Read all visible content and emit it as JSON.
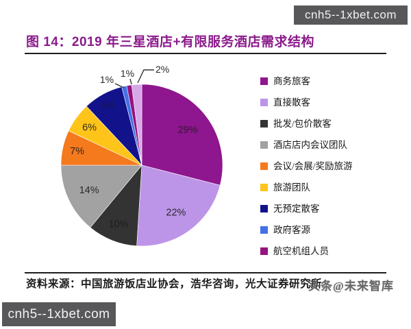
{
  "watermarks": {
    "top_right": "cnh5--1xbet.com",
    "bottom_left": "cnh5--1xbet.com",
    "overlay": "头条@未来智库"
  },
  "header": {
    "title": "图 14：2019 年三星酒店+有限服务酒店需求结构"
  },
  "footer": {
    "source": "资料来源：中国旅游饭店业协会，浩华咨询，光大证券研究所"
  },
  "chart_data": {
    "type": "pie",
    "title": "2019 年三星酒店+有限服务酒店需求结构",
    "legend_position": "right",
    "start_angle_deg": 0,
    "direction": "clockwise",
    "slices": [
      {
        "label": "商务旅客",
        "value": 29,
        "display": "29%",
        "color": "#8E168E",
        "legend": true
      },
      {
        "label": "直接散客",
        "value": 22,
        "display": "22%",
        "color": "#BD95E8",
        "legend": true
      },
      {
        "label": "批发/包价散客",
        "value": 10,
        "display": "10%",
        "color": "#333333",
        "legend": true
      },
      {
        "label": "酒店店内会议团队",
        "value": 14,
        "display": "14%",
        "color": "#A2A2A2",
        "legend": true
      },
      {
        "label": "会议/会展/奖励旅游",
        "value": 7,
        "display": "7%",
        "color": "#F5791D",
        "legend": true
      },
      {
        "label": "旅游团队",
        "value": 6,
        "display": "6%",
        "color": "#FFC41A",
        "legend": true
      },
      {
        "label": "无预定散客",
        "value": 8,
        "display": "8%",
        "color": "#12128A",
        "legend": true
      },
      {
        "label": "政府客源",
        "value": 1,
        "display": "1%",
        "color": "#4570E6",
        "legend": true
      },
      {
        "label": "航空机组人员",
        "value": 1,
        "display": "1%",
        "color": "#96127E",
        "legend": true
      },
      {
        "label": "",
        "value": 2,
        "display": "2%",
        "color": "#D7A8E8",
        "legend": false
      }
    ]
  }
}
